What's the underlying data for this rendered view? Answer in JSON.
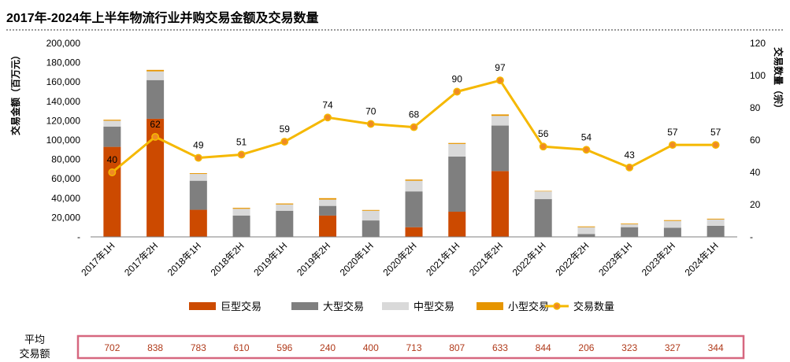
{
  "chart_data": {
    "type": "bar",
    "title": "2017年-2024年上半年物流行业并购交易金额及交易数量",
    "categories": [
      "2017年1H",
      "2017年2H",
      "2018年1H",
      "2018年2H",
      "2019年1H",
      "2019年2H",
      "2020年1H",
      "2020年2H",
      "2021年1H",
      "2021年2H",
      "2022年1H",
      "2022年2H",
      "2023年1H",
      "2023年2H",
      "2024年1H"
    ],
    "ylabel": "交易金额（百万元）",
    "ylabel_right": "交易数量（宗）",
    "ylim": [
      0,
      200000
    ],
    "ylim_right": [
      0,
      120
    ],
    "yticks": [
      "-",
      "20,000",
      "40,000",
      "60,000",
      "80,000",
      "100,000",
      "120,000",
      "140,000",
      "160,000",
      "180,000",
      "200,000"
    ],
    "yticks_right": [
      "-",
      "20",
      "40",
      "60",
      "80",
      "100",
      "120"
    ],
    "series": [
      {
        "name": "巨型交易",
        "color": "#cc4a00",
        "values": [
          93000,
          122000,
          28000,
          0,
          0,
          22000,
          0,
          10000,
          26000,
          68000,
          0,
          0,
          0,
          0,
          0
        ]
      },
      {
        "name": "大型交易",
        "color": "#7f7f7f",
        "values": [
          21000,
          40000,
          30000,
          22000,
          27000,
          10000,
          17000,
          37000,
          57000,
          47000,
          39000,
          3000,
          10000,
          9500,
          11500
        ]
      },
      {
        "name": "中型交易",
        "color": "#d9d9d9",
        "values": [
          6000,
          9000,
          7000,
          7000,
          6500,
          6500,
          10000,
          11000,
          13000,
          10000,
          8000,
          7000,
          3000,
          7000,
          6500
        ]
      },
      {
        "name": "小型交易",
        "color": "#e69500",
        "values": [
          1000,
          1500,
          800,
          1000,
          1000,
          1500,
          800,
          1200,
          1000,
          1500,
          500,
          800,
          700,
          800,
          800
        ]
      }
    ],
    "line": {
      "name": "交易数量",
      "color": "#f5b800",
      "values": [
        40,
        62,
        49,
        51,
        59,
        74,
        70,
        68,
        90,
        97,
        56,
        54,
        43,
        57,
        57
      ]
    },
    "legend_position": "bottom"
  },
  "average": {
    "label_line1": "平均",
    "label_line2": "交易额",
    "values": [
      "702",
      "838",
      "783",
      "610",
      "596",
      "240",
      "400",
      "713",
      "807",
      "633",
      "844",
      "206",
      "323",
      "327",
      "344"
    ],
    "border_color": "#d6677f",
    "text_color": "#b03a1a"
  }
}
